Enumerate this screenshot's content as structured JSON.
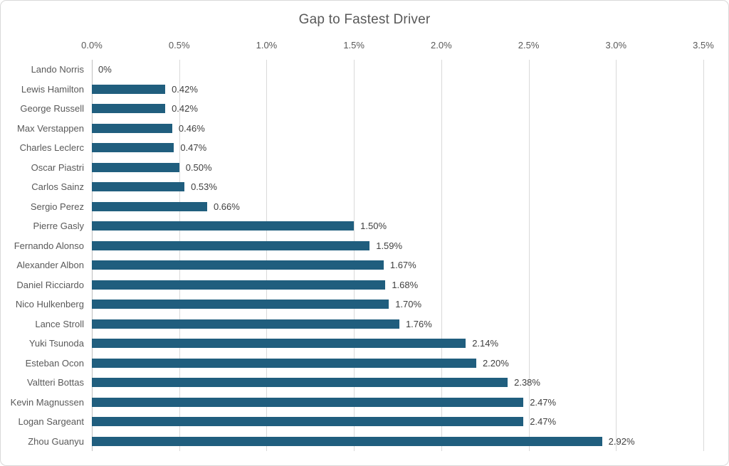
{
  "title": "Gap to Fastest Driver",
  "colors": {
    "bar_fill": "#205E7E",
    "gridline": "#D9D9D9",
    "value_axis_line": "#BFBFBF",
    "title_text": "#595959",
    "tick_text": "#595959",
    "category_text": "#595959",
    "data_label_text": "#404040",
    "frame_border": "#D9D9D9",
    "background": "#FFFFFF"
  },
  "chart_data": {
    "type": "bar",
    "orientation": "horizontal",
    "title": "Gap to Fastest Driver",
    "categories": [
      "Lando Norris",
      "Lewis Hamilton",
      "George Russell",
      "Max Verstappen",
      "Charles Leclerc",
      "Oscar Piastri",
      "Carlos Sainz",
      "Sergio Perez",
      "Pierre Gasly",
      "Fernando Alonso",
      "Alexander Albon",
      "Daniel Ricciardo",
      "Nico Hulkenberg",
      "Lance Stroll",
      "Yuki Tsunoda",
      "Esteban Ocon",
      "Valtteri Bottas",
      "Kevin Magnussen",
      "Logan Sargeant",
      "Zhou Guanyu"
    ],
    "values": [
      0,
      0.42,
      0.42,
      0.46,
      0.47,
      0.5,
      0.53,
      0.66,
      1.5,
      1.59,
      1.67,
      1.68,
      1.7,
      1.76,
      2.14,
      2.2,
      2.38,
      2.47,
      2.47,
      2.92
    ],
    "data_labels": [
      "0%",
      "0.42%",
      "0.42%",
      "0.46%",
      "0.47%",
      "0.50%",
      "0.53%",
      "0.66%",
      "1.50%",
      "1.59%",
      "1.67%",
      "1.68%",
      "1.70%",
      "1.76%",
      "2.14%",
      "2.20%",
      "2.38%",
      "2.47%",
      "2.47%",
      "2.92%"
    ],
    "xlabel": "",
    "ylabel": "",
    "x_axis": {
      "position": "top",
      "min": 0,
      "max": 3.5,
      "tick_values": [
        0,
        0.5,
        1.0,
        1.5,
        2.0,
        2.5,
        3.0,
        3.5
      ],
      "tick_labels": [
        "0.0%",
        "0.5%",
        "1.0%",
        "1.5%",
        "2.0%",
        "2.5%",
        "3.0%",
        "3.5%"
      ]
    },
    "grid": true,
    "legend": false
  }
}
